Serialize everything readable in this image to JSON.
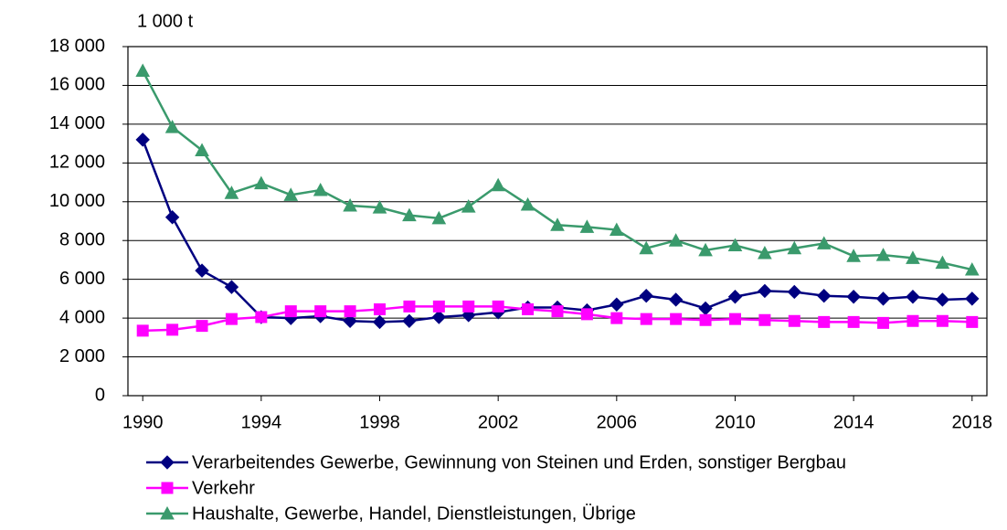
{
  "chart_data": {
    "type": "line",
    "unit_label": "1 000 t",
    "x": [
      1990,
      1991,
      1992,
      1993,
      1994,
      1995,
      1996,
      1997,
      1998,
      1999,
      2000,
      2001,
      2002,
      2003,
      2004,
      2005,
      2006,
      2007,
      2008,
      2009,
      2010,
      2011,
      2012,
      2013,
      2014,
      2015,
      2016,
      2017,
      2018
    ],
    "xlim": [
      1989.5,
      2018.5
    ],
    "xticks": [
      1990,
      1994,
      1998,
      2002,
      2006,
      2010,
      2014,
      2018
    ],
    "ylim": [
      0,
      18000
    ],
    "yticks": [
      0,
      {
        "value": 2000,
        "label": "2 000"
      },
      {
        "value": 4000,
        "label": "4 000"
      },
      {
        "value": 6000,
        "label": "6 000"
      },
      {
        "value": 8000,
        "label": "8 000"
      },
      {
        "value": 10000,
        "label": "10 000"
      },
      {
        "value": 12000,
        "label": "12 000"
      },
      {
        "value": 14000,
        "label": "14 000"
      },
      {
        "value": 16000,
        "label": "16 000"
      },
      {
        "value": 18000,
        "label": "18 000"
      }
    ],
    "grid": true,
    "series": [
      {
        "name": "Verarbeitendes Gewerbe, Gewinnung von Steinen und Erden, sonstiger Bergbau",
        "color": "#000080",
        "marker": "diamond",
        "values": [
          13200,
          9200,
          6450,
          5600,
          4050,
          4000,
          4100,
          3850,
          3800,
          3850,
          4050,
          4150,
          4300,
          4550,
          4550,
          4400,
          4700,
          5150,
          4950,
          4500,
          5100,
          5400,
          5350,
          5150,
          5100,
          5000,
          5100,
          4950,
          5000
        ]
      },
      {
        "name": "Verkehr",
        "color": "#ff00ff",
        "marker": "square",
        "values": [
          3350,
          3400,
          3600,
          3950,
          4050,
          4350,
          4350,
          4350,
          4450,
          4600,
          4600,
          4600,
          4600,
          4450,
          4350,
          4200,
          4000,
          3950,
          3950,
          3900,
          3950,
          3900,
          3850,
          3800,
          3800,
          3750,
          3850,
          3850,
          3800
        ]
      },
      {
        "name": "Haushalte, Gewerbe, Handel, Dienstleistungen, Übrige",
        "color": "#3a9a6c",
        "marker": "triangle",
        "values": [
          16750,
          13850,
          12650,
          10450,
          10950,
          10350,
          10600,
          9800,
          9700,
          9300,
          9150,
          9750,
          10850,
          9850,
          8800,
          8700,
          8550,
          7600,
          8000,
          7500,
          7750,
          7350,
          7600,
          7850,
          7200,
          7250,
          7100,
          6850,
          6500
        ]
      }
    ]
  }
}
